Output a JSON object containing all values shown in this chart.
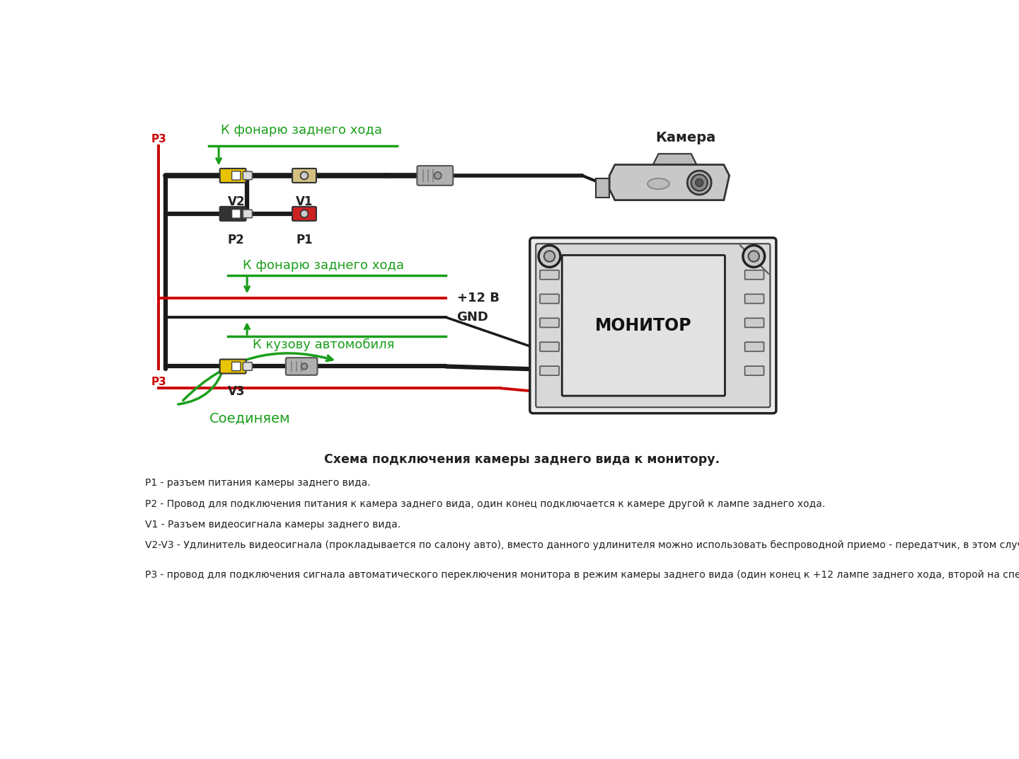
{
  "bg_color": "#ffffff",
  "title_section": "Схема подключения камеры заднего вида к монитору.",
  "label_camera": "Камера",
  "label_monitor": "МОНИТОР",
  "label_k_fonarju": "К фонарю заднего хода",
  "label_k_fonarju2": "К фонарю заднего хода",
  "label_k_kuzovu": "К кузову автомобиля",
  "label_soedinjaem": "Соединяем",
  "label_12v": "+12 В",
  "label_gnd": "GND",
  "label_p1": "P1",
  "label_p2": "P2",
  "label_p3_top": "P3",
  "label_p3_bottom": "P3",
  "label_v1": "V1",
  "label_v2": "V2",
  "label_v3": "V3",
  "green_color": "#1a9e1a",
  "red_color": "#cc0000",
  "black_color": "#1a1a1a",
  "gray_color": "#888888",
  "yellow_color": "#e8c400",
  "text_color": "#222222",
  "desc_lines": [
    "P1 - разъем питания камеры заднего вида.",
    "P2 - Провод для подключения питания к камера заднего вида, один конец подключается к камере другой к лампе заднего хода.",
    "V1 - Разъем видеосигнала камеры заднего вида.",
    "V2-V3 - Удлинитель видеосигнала (прокладывается по салону авто), вместо данного удлинителя можно использовать беспроводной приемо - передатчик, в этом случае не придется разбирать слон и тянуть проводку.",
    "Р3 - провод для подключения сигнала автоматического переключения монитора в режим камеры заднего вида (один конец к +12 лампе заднего хода, второй на специальный вход монитора или ШГУ)"
  ]
}
